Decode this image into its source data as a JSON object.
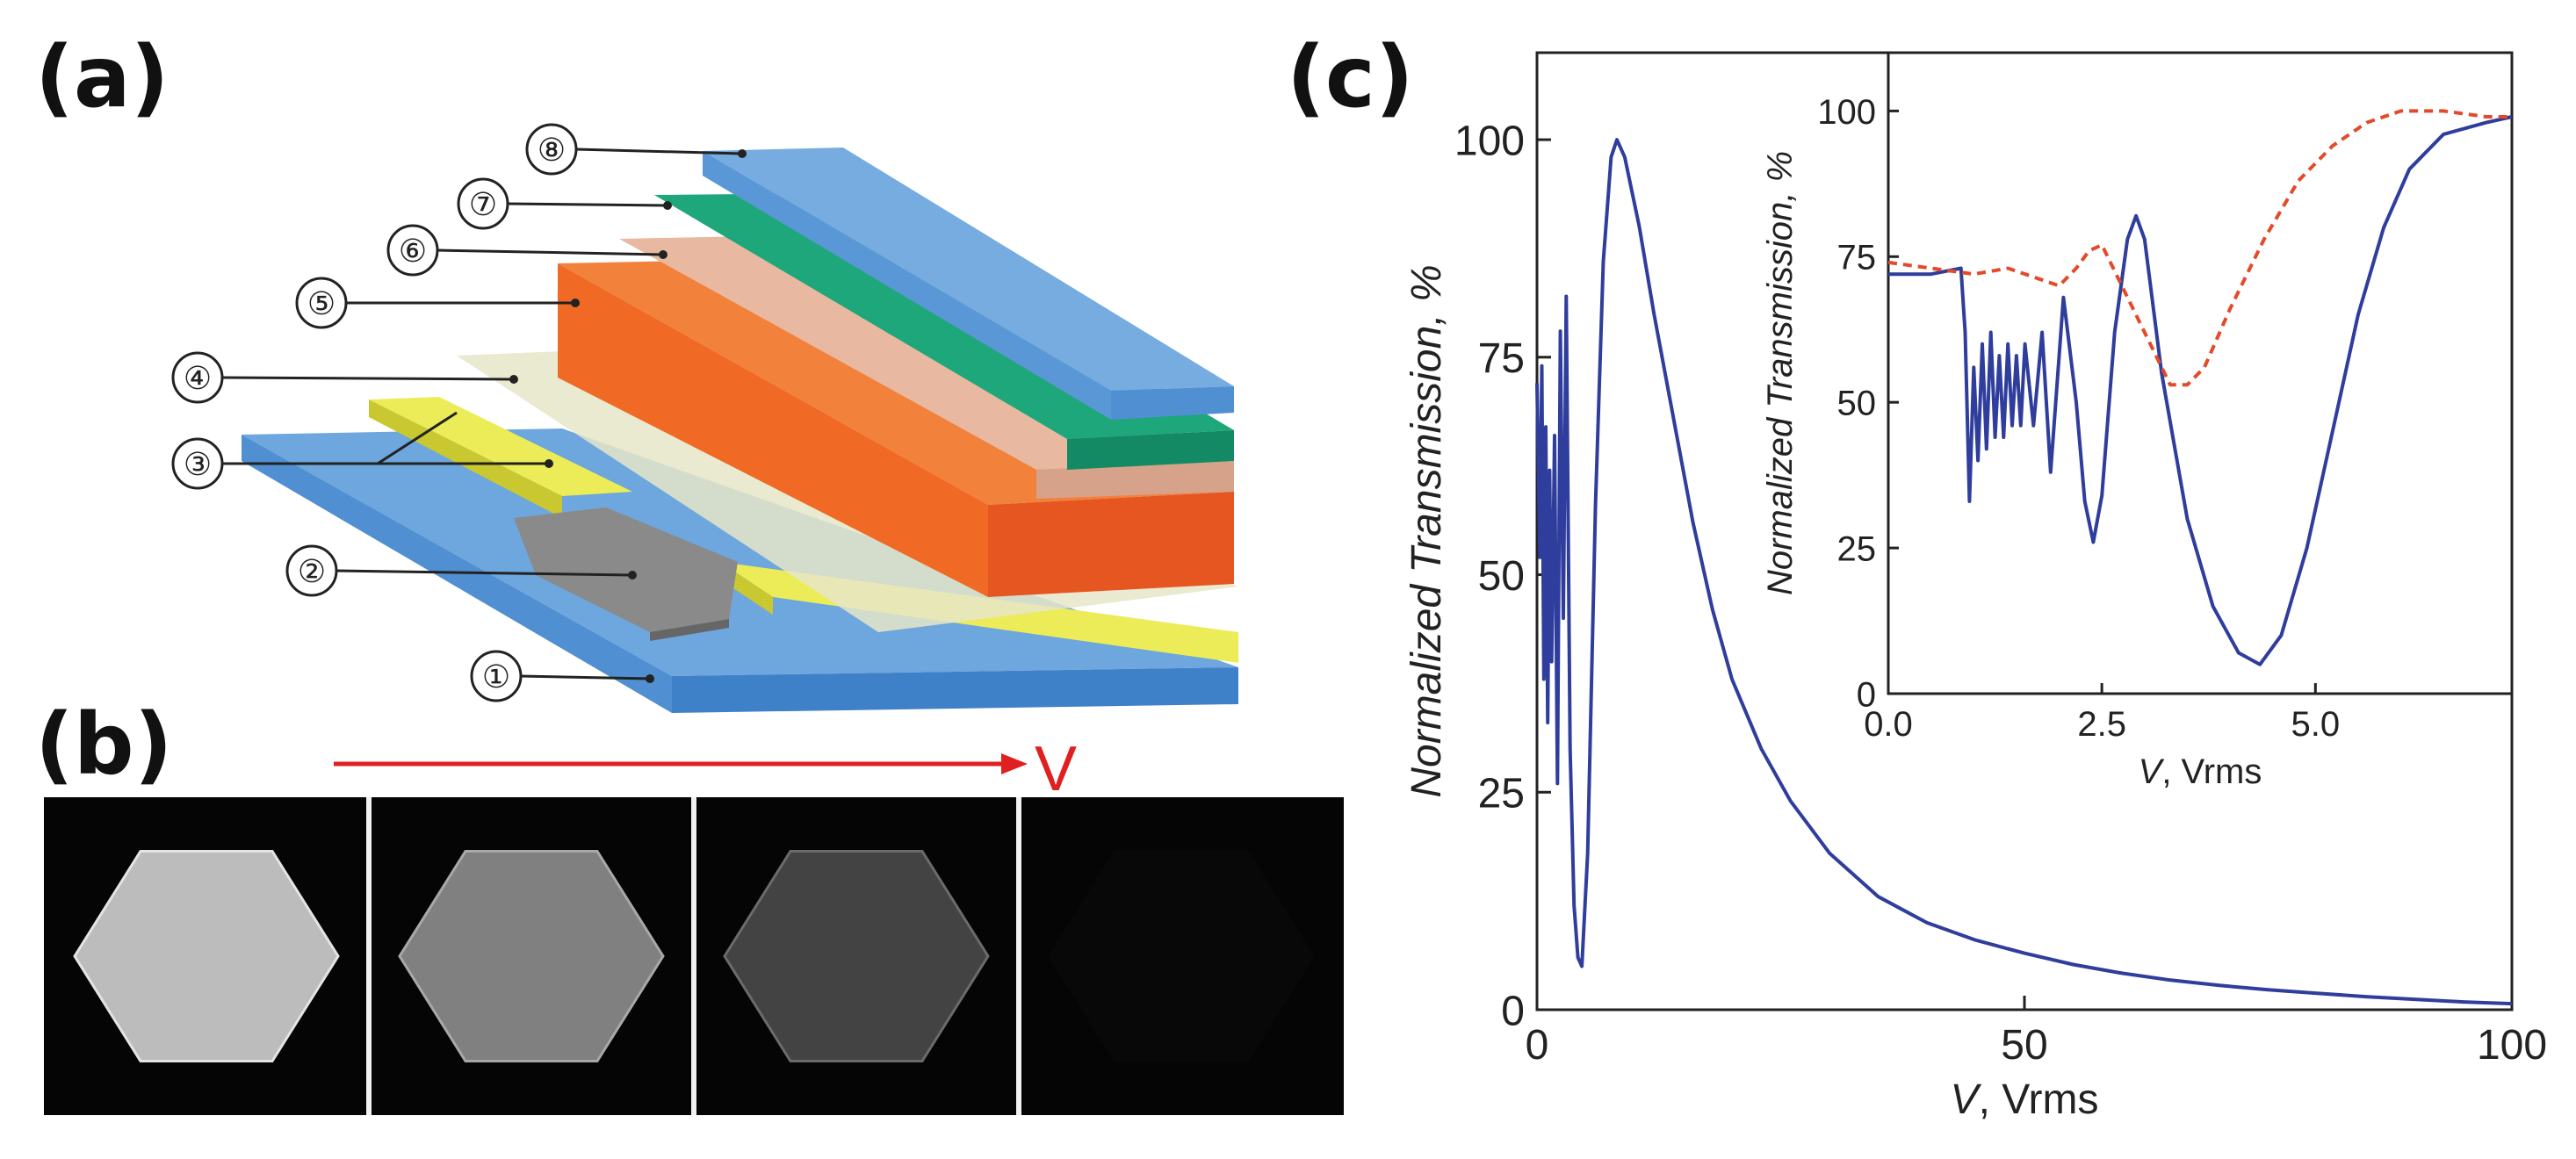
{
  "panels": {
    "a": "(a)",
    "b": "(b)",
    "c": "(c)"
  },
  "device_layers": {
    "callouts": [
      "⑧",
      "⑦",
      "⑥",
      "⑤",
      "④",
      "③",
      "②",
      "①"
    ],
    "colors": {
      "substrate_blue": "#6ea6de",
      "electrode_yellow": "#ecec58",
      "gray_semiconductor": "#8a8a8a",
      "orange_lc": "#f0702c",
      "peach_film": "#e8b8a0",
      "green_film": "#1ea77a",
      "top_blue": "#6ea6de"
    }
  },
  "voltage_arrow": {
    "label": "V",
    "color": "#e02020"
  },
  "hexagon_frames": {
    "count": 4,
    "brightness": [
      0.78,
      0.5,
      0.22,
      0.0
    ]
  },
  "chart_data": [
    {
      "type": "line",
      "name": "main",
      "xlabel_prefix": "V",
      "xlabel_suffix": ", Vrms",
      "ylabel": "Normalized Transmission, %",
      "xlim": [
        0,
        100
      ],
      "ylim": [
        0,
        110
      ],
      "xticks": [
        0,
        50,
        100
      ],
      "yticks": [
        0,
        25,
        50,
        75,
        100
      ],
      "series": [
        {
          "name": "transmission",
          "color": "#2f3d9c",
          "points": [
            [
              0.0,
              72
            ],
            [
              0.3,
              52
            ],
            [
              0.5,
              74
            ],
            [
              0.7,
              38
            ],
            [
              0.9,
              67
            ],
            [
              1.1,
              33
            ],
            [
              1.3,
              62
            ],
            [
              1.5,
              40
            ],
            [
              1.8,
              66
            ],
            [
              2.1,
              26
            ],
            [
              2.4,
              78
            ],
            [
              2.7,
              45
            ],
            [
              3.0,
              82
            ],
            [
              3.4,
              30
            ],
            [
              3.8,
              12
            ],
            [
              4.2,
              6
            ],
            [
              4.6,
              5
            ],
            [
              5.2,
              18
            ],
            [
              6.0,
              58
            ],
            [
              6.8,
              86
            ],
            [
              7.6,
              98
            ],
            [
              8.2,
              100
            ],
            [
              9.0,
              98
            ],
            [
              10.5,
              90
            ],
            [
              12,
              80
            ],
            [
              14,
              68
            ],
            [
              16,
              56
            ],
            [
              18,
              46
            ],
            [
              20,
              38
            ],
            [
              23,
              30
            ],
            [
              26,
              24
            ],
            [
              30,
              18
            ],
            [
              35,
              13
            ],
            [
              40,
              10
            ],
            [
              45,
              8
            ],
            [
              50,
              6.5
            ],
            [
              55,
              5.2
            ],
            [
              60,
              4.2
            ],
            [
              65,
              3.4
            ],
            [
              70,
              2.8
            ],
            [
              75,
              2.3
            ],
            [
              80,
              1.9
            ],
            [
              85,
              1.5
            ],
            [
              90,
              1.2
            ],
            [
              95,
              0.9
            ],
            [
              100,
              0.7
            ]
          ]
        }
      ]
    },
    {
      "type": "line",
      "name": "inset",
      "xlabel_prefix": "V",
      "xlabel_suffix": ", Vrms",
      "ylabel": "Normalized Transmission, %",
      "xlim": [
        0,
        7.3
      ],
      "ylim": [
        0,
        110
      ],
      "xticks": [
        0.0,
        2.5,
        5.0
      ],
      "xtick_labels": [
        "0.0",
        "2.5",
        "5.0"
      ],
      "yticks": [
        0,
        25,
        50,
        75,
        100
      ],
      "series": [
        {
          "name": "solid",
          "color": "#2f3d9c",
          "points": [
            [
              0.0,
              72
            ],
            [
              0.5,
              72
            ],
            [
              0.85,
              73
            ],
            [
              0.9,
              62
            ],
            [
              0.95,
              33
            ],
            [
              1.0,
              56
            ],
            [
              1.05,
              40
            ],
            [
              1.1,
              60
            ],
            [
              1.15,
              42
            ],
            [
              1.2,
              62
            ],
            [
              1.25,
              44
            ],
            [
              1.3,
              58
            ],
            [
              1.35,
              44
            ],
            [
              1.4,
              60
            ],
            [
              1.45,
              46
            ],
            [
              1.5,
              58
            ],
            [
              1.55,
              46
            ],
            [
              1.6,
              60
            ],
            [
              1.7,
              46
            ],
            [
              1.8,
              62
            ],
            [
              1.9,
              38
            ],
            [
              2.05,
              68
            ],
            [
              2.2,
              50
            ],
            [
              2.3,
              33
            ],
            [
              2.4,
              26
            ],
            [
              2.5,
              34
            ],
            [
              2.65,
              62
            ],
            [
              2.8,
              78
            ],
            [
              2.9,
              82
            ],
            [
              3.0,
              78
            ],
            [
              3.2,
              55
            ],
            [
              3.5,
              30
            ],
            [
              3.8,
              15
            ],
            [
              4.1,
              7
            ],
            [
              4.35,
              5
            ],
            [
              4.6,
              10
            ],
            [
              4.9,
              25
            ],
            [
              5.2,
              45
            ],
            [
              5.5,
              65
            ],
            [
              5.8,
              80
            ],
            [
              6.1,
              90
            ],
            [
              6.5,
              96
            ],
            [
              7.0,
              98
            ],
            [
              7.3,
              99
            ]
          ]
        },
        {
          "name": "dashed",
          "color": "#e34a2a",
          "dash": true,
          "points": [
            [
              0.0,
              74
            ],
            [
              0.5,
              73
            ],
            [
              1.0,
              72
            ],
            [
              1.4,
              73
            ],
            [
              1.8,
              71
            ],
            [
              2.0,
              70
            ],
            [
              2.2,
              73
            ],
            [
              2.35,
              76
            ],
            [
              2.5,
              77
            ],
            [
              2.7,
              71
            ],
            [
              3.0,
              62
            ],
            [
              3.3,
              53
            ],
            [
              3.5,
              53
            ],
            [
              3.7,
              56
            ],
            [
              4.0,
              66
            ],
            [
              4.4,
              78
            ],
            [
              4.8,
              88
            ],
            [
              5.2,
              94
            ],
            [
              5.6,
              98
            ],
            [
              6.0,
              100
            ],
            [
              6.5,
              100
            ],
            [
              7.0,
              99
            ],
            [
              7.3,
              99
            ]
          ]
        }
      ]
    }
  ]
}
